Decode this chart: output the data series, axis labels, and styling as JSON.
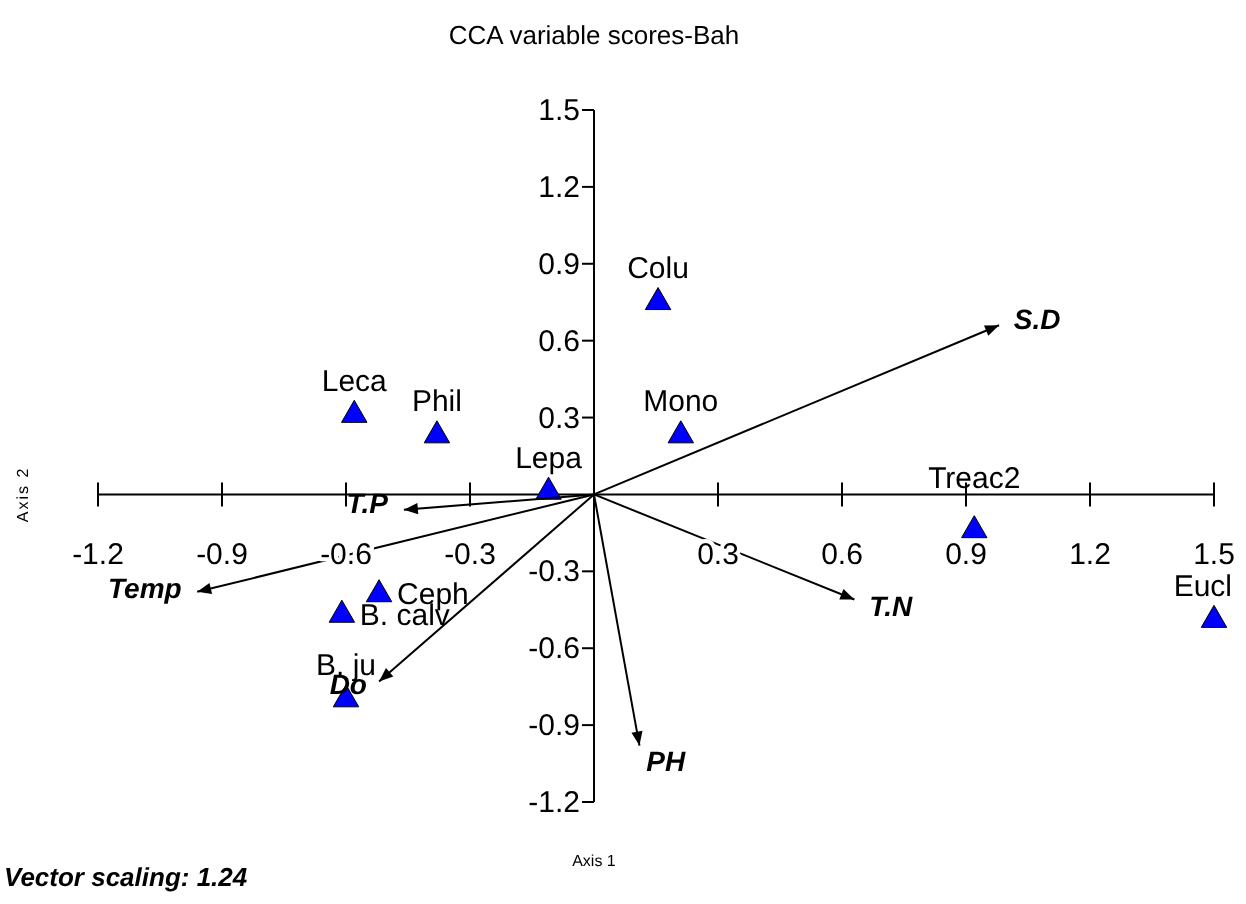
{
  "chart_data": {
    "type": "scatter",
    "title": "CCA variable scores-Bah",
    "xlabel": "Axis 1",
    "ylabel": "Axis 2",
    "xlim": [
      -1.2,
      1.5
    ],
    "ylim": [
      -1.2,
      1.5
    ],
    "xticks": [
      -1.2,
      -0.9,
      -0.6,
      -0.3,
      0.3,
      0.6,
      0.9,
      1.2,
      1.5
    ],
    "yticks": [
      -1.2,
      -0.9,
      -0.6,
      -0.3,
      0.3,
      0.6,
      0.9,
      1.2,
      1.5
    ],
    "grid": false,
    "legend": false,
    "series": [
      {
        "type": "scatter",
        "color": "#0000ff",
        "marker": "triangle",
        "x": [
          -0.58,
          -0.38,
          -0.11,
          0.155,
          0.21,
          0.92,
          1.5,
          -0.52,
          -0.61,
          -0.6
        ],
        "values": [
          0.31,
          0.23,
          0.01,
          0.75,
          0.23,
          -0.14,
          -0.49,
          -0.39,
          -0.47,
          -0.8
        ]
      },
      {
        "type": "line",
        "name": "S.D",
        "color": "#000000",
        "marker": "none",
        "x": [
          0,
          0.98
        ],
        "values": [
          0,
          0.66
        ]
      },
      {
        "type": "line",
        "name": "T.N",
        "color": "#000000",
        "marker": "none",
        "x": [
          0,
          0.63
        ],
        "values": [
          0,
          -0.41
        ]
      },
      {
        "type": "line",
        "name": "PH",
        "color": "#000000",
        "marker": "none",
        "x": [
          0,
          0.11
        ],
        "values": [
          0,
          -0.98
        ]
      },
      {
        "type": "line",
        "name": "T.P",
        "color": "#000000",
        "marker": "none",
        "x": [
          0,
          -0.46
        ],
        "values": [
          0,
          -0.06
        ]
      },
      {
        "type": "line",
        "name": "Temp",
        "color": "#000000",
        "marker": "none",
        "x": [
          0,
          -0.96
        ],
        "values": [
          0,
          -0.38
        ]
      },
      {
        "type": "line",
        "name": "Do",
        "color": "#000000",
        "marker": "none",
        "x": [
          0,
          -0.52
        ],
        "values": [
          0,
          -0.73
        ]
      }
    ],
    "annotations": [
      {
        "text": "Leca",
        "x": -0.58,
        "y": 0.31
      },
      {
        "text": "Phil",
        "x": -0.38,
        "y": 0.23
      },
      {
        "text": "Lepa",
        "x": -0.11,
        "y": 0.01
      },
      {
        "text": "Colu",
        "x": 0.155,
        "y": 0.75
      },
      {
        "text": "Mono",
        "x": 0.21,
        "y": 0.23
      },
      {
        "text": "Treac2",
        "x": 0.92,
        "y": -0.14
      },
      {
        "text": "Eucl",
        "x": 1.5,
        "y": -0.49
      },
      {
        "text": "Ceph",
        "x": -0.52,
        "y": -0.39
      },
      {
        "text": "B. calv",
        "x": -0.61,
        "y": -0.47
      },
      {
        "text": "B. ju",
        "x": -0.6,
        "y": -0.8
      },
      "Vector scaling: 1.24"
    ]
  }
}
